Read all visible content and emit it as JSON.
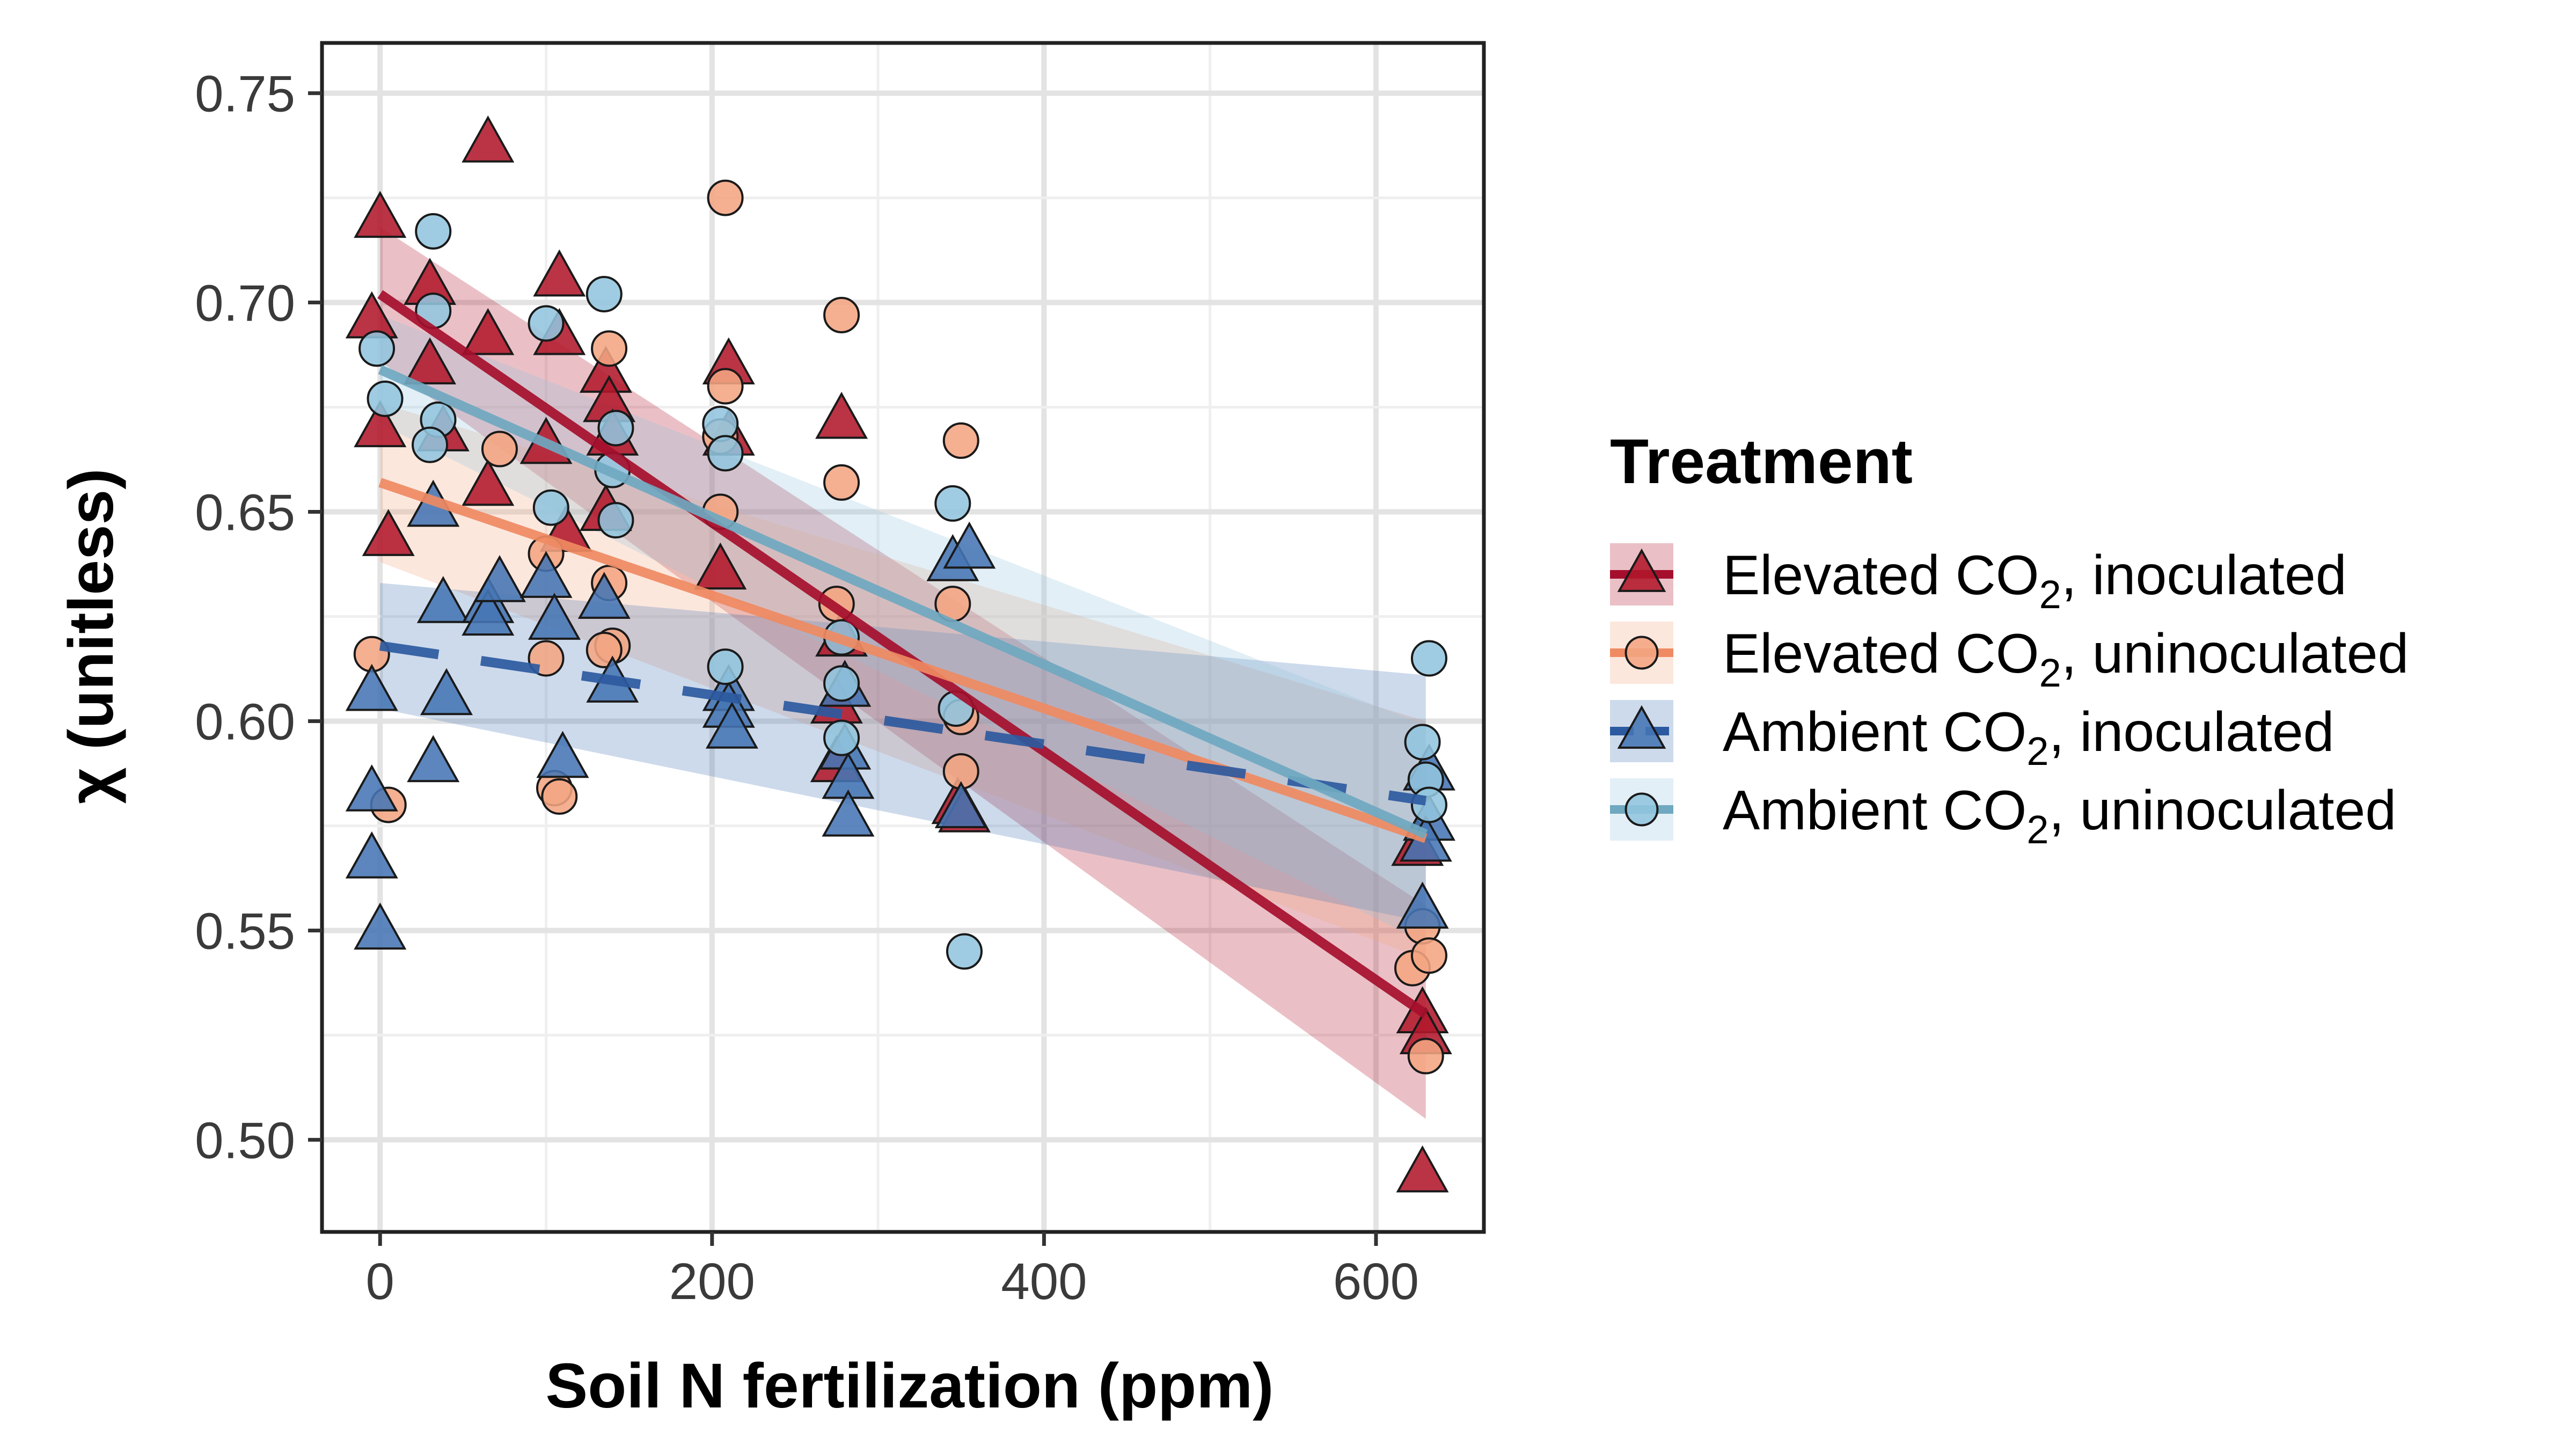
{
  "chart_data": {
    "type": "scatter",
    "xlabel": "Soil N fertilization (ppm)",
    "ylabel": "χ (unitless)",
    "xlim": [
      -35,
      665
    ],
    "ylim": [
      0.478,
      0.762
    ],
    "x_ticks": [
      0,
      200,
      400,
      600
    ],
    "x_tick_labels": [
      "0",
      "200",
      "400",
      "600"
    ],
    "y_ticks": [
      0.5,
      0.55,
      0.6,
      0.65,
      0.7,
      0.75
    ],
    "y_tick_labels": [
      "0.50",
      "0.55",
      "0.60",
      "0.65",
      "0.70",
      "0.75"
    ],
    "grid": true,
    "legend": {
      "title": "Treatment",
      "position": "right"
    },
    "series": [
      {
        "name": "Elevated CO2, inoculated",
        "name_base": "Elevated CO",
        "name_sub": "2",
        "name_suffix": ", inoculated",
        "marker": "triangle",
        "color": "#b2182b",
        "line_color": "#a50f2d",
        "line_style": "solid",
        "fit": {
          "x0": 0,
          "y0": 0.702,
          "x1": 630,
          "y1": 0.53
        },
        "band": {
          "upper0": 0.718,
          "lower0": 0.686,
          "upper1": 0.556,
          "lower1": 0.505
        },
        "points": [
          [
            0,
            0.72
          ],
          [
            -5,
            0.696
          ],
          [
            0,
            0.67
          ],
          [
            5,
            0.644
          ],
          [
            65,
            0.738
          ],
          [
            30,
            0.704
          ],
          [
            30,
            0.685
          ],
          [
            38,
            0.669
          ],
          [
            65,
            0.692
          ],
          [
            65,
            0.656
          ],
          [
            108,
            0.706
          ],
          [
            108,
            0.692
          ],
          [
            100,
            0.666
          ],
          [
            112,
            0.645
          ],
          [
            136,
            0.683
          ],
          [
            138,
            0.676
          ],
          [
            140,
            0.668
          ],
          [
            136,
            0.65
          ],
          [
            210,
            0.685
          ],
          [
            210,
            0.668
          ],
          [
            205,
            0.636
          ],
          [
            278,
            0.672
          ],
          [
            278,
            0.62
          ],
          [
            275,
            0.604
          ],
          [
            275,
            0.59
          ],
          [
            348,
            0.58
          ],
          [
            352,
            0.578
          ],
          [
            625,
            0.57
          ],
          [
            628,
            0.53
          ],
          [
            630,
            0.525
          ],
          [
            628,
            0.492
          ]
        ]
      },
      {
        "name": "Elevated CO2, uninoculated",
        "name_base": "Elevated CO",
        "name_sub": "2",
        "name_suffix": ", uninoculated",
        "marker": "circle",
        "color": "#f4a582",
        "line_color": "#ef8a62",
        "line_style": "solid",
        "fit": {
          "x0": 0,
          "y0": 0.657,
          "x1": 630,
          "y1": 0.572
        },
        "band": {
          "upper0": 0.676,
          "lower0": 0.638,
          "upper1": 0.6,
          "lower1": 0.543
        },
        "points": [
          [
            -5,
            0.616
          ],
          [
            5,
            0.58
          ],
          [
            72,
            0.665
          ],
          [
            100,
            0.64
          ],
          [
            100,
            0.615
          ],
          [
            105,
            0.584
          ],
          [
            108,
            0.582
          ],
          [
            138,
            0.689
          ],
          [
            138,
            0.633
          ],
          [
            140,
            0.618
          ],
          [
            135,
            0.617
          ],
          [
            208,
            0.725
          ],
          [
            208,
            0.68
          ],
          [
            205,
            0.668
          ],
          [
            205,
            0.65
          ],
          [
            278,
            0.697
          ],
          [
            278,
            0.657
          ],
          [
            275,
            0.628
          ],
          [
            350,
            0.667
          ],
          [
            345,
            0.628
          ],
          [
            350,
            0.601
          ],
          [
            350,
            0.588
          ],
          [
            622,
            0.541
          ],
          [
            628,
            0.551
          ],
          [
            632,
            0.544
          ],
          [
            630,
            0.52
          ]
        ]
      },
      {
        "name": "Ambient CO2, inoculated",
        "name_base": "Ambient CO",
        "name_sub": "2",
        "name_suffix": ", inoculated",
        "marker": "triangle",
        "color": "#4575b4",
        "line_color": "#2c5aa0",
        "line_style": "dashed",
        "fit": {
          "x0": 0,
          "y0": 0.618,
          "x1": 630,
          "y1": 0.581
        },
        "band": {
          "upper0": 0.633,
          "lower0": 0.603,
          "upper1": 0.611,
          "lower1": 0.552
        },
        "points": [
          [
            -5,
            0.607
          ],
          [
            -5,
            0.583
          ],
          [
            -5,
            0.567
          ],
          [
            0,
            0.55
          ],
          [
            32,
            0.651
          ],
          [
            38,
            0.628
          ],
          [
            40,
            0.606
          ],
          [
            32,
            0.59
          ],
          [
            65,
            0.628
          ],
          [
            65,
            0.625
          ],
          [
            72,
            0.633
          ],
          [
            100,
            0.634
          ],
          [
            105,
            0.624
          ],
          [
            110,
            0.591
          ],
          [
            135,
            0.629
          ],
          [
            140,
            0.609
          ],
          [
            210,
            0.607
          ],
          [
            210,
            0.603
          ],
          [
            212,
            0.598
          ],
          [
            280,
            0.608
          ],
          [
            280,
            0.593
          ],
          [
            282,
            0.586
          ],
          [
            282,
            0.577
          ],
          [
            345,
            0.638
          ],
          [
            355,
            0.641
          ],
          [
            350,
            0.579
          ],
          [
            628,
            0.555
          ],
          [
            632,
            0.588
          ],
          [
            632,
            0.576
          ],
          [
            630,
            0.571
          ]
        ]
      },
      {
        "name": "Ambient CO2, uninoculated",
        "name_base": "Ambient CO",
        "name_sub": "2",
        "name_suffix": ", uninoculated",
        "marker": "circle",
        "color": "#92c5de",
        "line_color": "#6fa8c0",
        "line_style": "solid",
        "fit": {
          "x0": 0,
          "y0": 0.684,
          "x1": 630,
          "y1": 0.573
        },
        "band": {
          "upper0": 0.697,
          "lower0": 0.671,
          "upper1": 0.599,
          "lower1": 0.547
        },
        "points": [
          [
            -2,
            0.689
          ],
          [
            3,
            0.677
          ],
          [
            32,
            0.717
          ],
          [
            32,
            0.698
          ],
          [
            35,
            0.672
          ],
          [
            30,
            0.666
          ],
          [
            100,
            0.695
          ],
          [
            103,
            0.651
          ],
          [
            135,
            0.702
          ],
          [
            142,
            0.67
          ],
          [
            140,
            0.66
          ],
          [
            142,
            0.648
          ],
          [
            205,
            0.671
          ],
          [
            208,
            0.664
          ],
          [
            208,
            0.613
          ],
          [
            278,
            0.62
          ],
          [
            278,
            0.609
          ],
          [
            278,
            0.596
          ],
          [
            345,
            0.652
          ],
          [
            347,
            0.603
          ],
          [
            352,
            0.545
          ],
          [
            632,
            0.615
          ],
          [
            628,
            0.595
          ],
          [
            630,
            0.586
          ],
          [
            632,
            0.58
          ]
        ]
      }
    ]
  }
}
